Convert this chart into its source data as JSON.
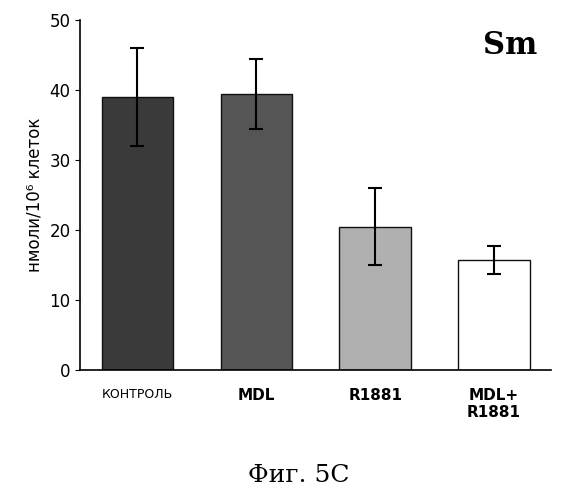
{
  "categories": [
    "КОНТРОЛЬ",
    "MDL",
    "R1881",
    "MDL+\nR1881"
  ],
  "values": [
    39.0,
    39.5,
    20.5,
    15.7
  ],
  "errors": [
    7.0,
    5.0,
    5.5,
    2.0
  ],
  "bar_colors": [
    "#3a3a3a",
    "#555555",
    "#b0b0b0",
    "#ffffff"
  ],
  "bar_edgecolors": [
    "#111111",
    "#111111",
    "#111111",
    "#111111"
  ],
  "ylabel": "нмоли/10⁶ клеток",
  "ylim": [
    0,
    50
  ],
  "yticks": [
    0,
    10,
    20,
    30,
    40,
    50
  ],
  "annotation": "Sm",
  "annotation_fontsize": 22,
  "figure_caption": "Фиг. 5C",
  "caption_fontsize": 18,
  "ylabel_fontsize": 12,
  "tick_fontsize": 12,
  "background_color": "#ffffff"
}
